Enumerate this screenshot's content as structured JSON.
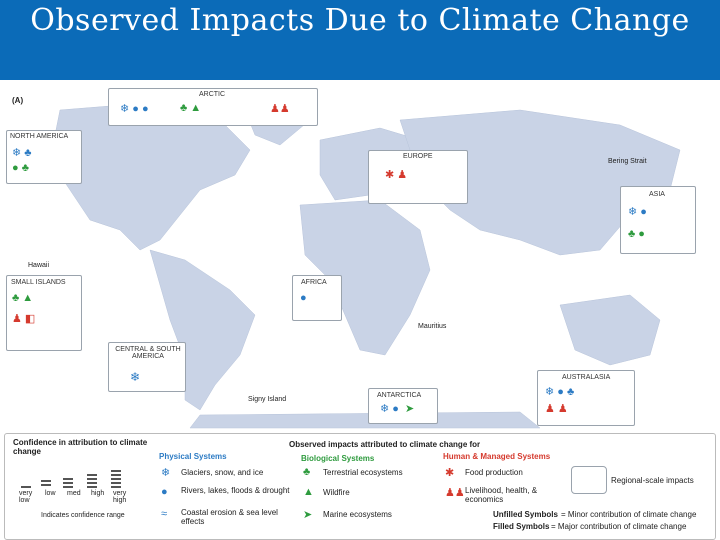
{
  "title": "Observed Impacts Due to Climate Change",
  "panel_label": "(A)",
  "regions": {
    "arctic": "ARCTIC",
    "north_america": "NORTH AMERICA",
    "europe": "EUROPE",
    "asia": "ASIA",
    "africa": "AFRICA",
    "small_islands": "SMALL ISLANDS",
    "central_south_america": "CENTRAL & SOUTH AMERICA",
    "australasia": "AUSTRALASIA",
    "antarctica": "ANTARCTICA"
  },
  "places": {
    "hawaii": "Hawaii",
    "bering_strait": "Bering Strait",
    "mauritius": "Mauritius",
    "signy_island": "Signy Island"
  },
  "legend": {
    "confidence_title": "Confidence in attribution to climate change",
    "confidence_levels": [
      "very low",
      "low",
      "med",
      "high",
      "very high"
    ],
    "confidence_range": "Indicates confidence range",
    "observed_title": "Observed impacts attributed to climate change for",
    "physical_heading": "Physical Systems",
    "physical_items": [
      "Glaciers, snow, and ice",
      "Rivers, lakes, floods & drought",
      "Coastal erosion & sea level effects"
    ],
    "biological_heading": "Biological Systems",
    "biological_items": [
      "Terrestrial ecosystems",
      "Wildfire",
      "Marine ecosystems"
    ],
    "human_heading": "Human & Managed Systems",
    "human_items": [
      "Food production",
      "Livelihood, health, & economics"
    ],
    "regional_scale": "Regional-scale impacts",
    "unfilled_symbols": "Unfilled Symbols",
    "unfilled_desc": "= Minor contribution of climate change",
    "filled_symbols": "Filled Symbols",
    "filled_desc": "= Major contribution of climate change"
  },
  "colors": {
    "title_bar": "#0b6bb8",
    "ocean": "#ffffff",
    "land": "#c9d3e6",
    "physical": "#2c7bc4",
    "biological": "#2e9b3e",
    "human": "#d53a2e"
  }
}
